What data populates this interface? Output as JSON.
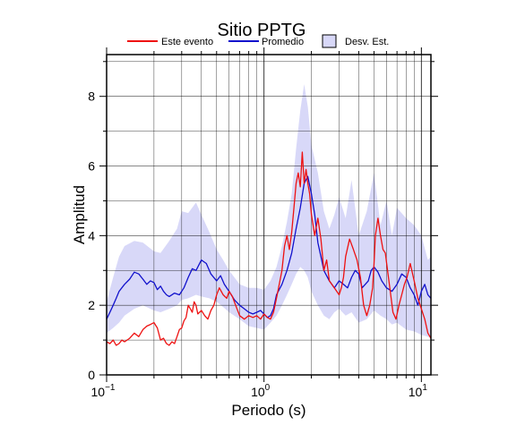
{
  "chart_data": {
    "type": "line",
    "title": "Sitio PPTG",
    "xlabel": "Periodo (s)",
    "ylabel": "Amplitud",
    "xscale": "log",
    "xlim": [
      0.1,
      11.5
    ],
    "ylim": [
      0,
      9.2
    ],
    "grid": true,
    "legend_position": "top",
    "x_ticks": [
      {
        "value": 0.1,
        "mant": "10",
        "exp": "−1"
      },
      {
        "value": 1,
        "mant": "10",
        "exp": "0"
      },
      {
        "value": 10,
        "mant": "10",
        "exp": "1"
      }
    ],
    "y_ticks": [
      0,
      2,
      4,
      6,
      8
    ],
    "legend": [
      {
        "label": "Este evento",
        "kind": "line",
        "color": "#ee1111"
      },
      {
        "label": "Promedio",
        "kind": "line",
        "color": "#1111cc"
      },
      {
        "label": "Desv. Est.",
        "kind": "box",
        "color": "#d8d8f8"
      }
    ],
    "band": {
      "name": "Desv. Est.",
      "color": "#d8d8f8",
      "x": [
        0.1,
        0.11,
        0.12,
        0.13,
        0.15,
        0.17,
        0.2,
        0.22,
        0.25,
        0.28,
        0.3,
        0.33,
        0.37,
        0.4,
        0.45,
        0.5,
        0.55,
        0.6,
        0.7,
        0.8,
        0.9,
        1.0,
        1.1,
        1.2,
        1.3,
        1.4,
        1.5,
        1.6,
        1.7,
        1.8,
        1.9,
        2.0,
        2.2,
        2.4,
        2.6,
        2.8,
        3.0,
        3.3,
        3.6,
        4.0,
        4.5,
        5.0,
        5.5,
        6.0,
        6.5,
        7.0,
        8.0,
        9.0,
        10.0,
        11.0,
        11.5
      ],
      "upper": [
        2.1,
        2.8,
        3.4,
        3.7,
        3.85,
        3.8,
        3.55,
        3.5,
        3.85,
        4.2,
        4.7,
        4.65,
        4.95,
        4.6,
        4.1,
        3.6,
        3.3,
        3.0,
        2.6,
        2.5,
        2.5,
        2.45,
        2.7,
        3.1,
        3.7,
        4.4,
        5.2,
        6.5,
        7.6,
        8.35,
        7.7,
        6.6,
        5.8,
        4.7,
        4.2,
        4.6,
        5.1,
        4.5,
        5.6,
        4.0,
        4.7,
        5.8,
        4.3,
        5.0,
        4.0,
        4.8,
        4.5,
        4.3,
        4.0,
        3.3,
        3.4
      ],
      "lower": [
        1.2,
        1.35,
        1.5,
        1.7,
        1.9,
        2.0,
        1.85,
        1.8,
        1.9,
        2.0,
        2.15,
        2.2,
        2.3,
        2.25,
        2.2,
        2.1,
        1.95,
        1.8,
        1.6,
        1.4,
        1.35,
        1.3,
        1.5,
        1.7,
        2.0,
        2.3,
        2.6,
        2.9,
        3.1,
        3.0,
        2.8,
        2.4,
        2.0,
        1.7,
        1.6,
        1.8,
        1.9,
        1.7,
        1.8,
        1.5,
        1.6,
        1.85,
        1.7,
        1.6,
        1.45,
        1.5,
        1.3,
        1.25,
        1.15,
        1.1,
        1.05
      ]
    },
    "series": [
      {
        "name": "Este evento",
        "color": "#ee1111",
        "x": [
          0.1,
          0.105,
          0.11,
          0.115,
          0.12,
          0.125,
          0.13,
          0.14,
          0.15,
          0.16,
          0.17,
          0.18,
          0.19,
          0.2,
          0.21,
          0.22,
          0.23,
          0.24,
          0.25,
          0.26,
          0.27,
          0.28,
          0.29,
          0.3,
          0.31,
          0.32,
          0.33,
          0.34,
          0.35,
          0.36,
          0.37,
          0.38,
          0.4,
          0.42,
          0.44,
          0.46,
          0.48,
          0.5,
          0.52,
          0.55,
          0.58,
          0.6,
          0.63,
          0.66,
          0.7,
          0.75,
          0.8,
          0.85,
          0.9,
          0.95,
          1.0,
          1.05,
          1.1,
          1.15,
          1.2,
          1.25,
          1.3,
          1.35,
          1.4,
          1.45,
          1.5,
          1.55,
          1.6,
          1.65,
          1.7,
          1.75,
          1.8,
          1.85,
          1.9,
          1.95,
          2.0,
          2.1,
          2.2,
          2.3,
          2.4,
          2.5,
          2.6,
          2.7,
          2.8,
          2.9,
          3.0,
          3.1,
          3.2,
          3.3,
          3.5,
          3.7,
          3.9,
          4.1,
          4.3,
          4.5,
          4.7,
          4.9,
          5.0,
          5.1,
          5.3,
          5.5,
          5.7,
          5.9,
          6.1,
          6.3,
          6.6,
          6.9,
          7.2,
          7.5,
          7.8,
          8.1,
          8.5,
          9.0,
          9.5,
          10.0,
          10.5,
          11.0,
          11.5
        ],
        "y": [
          0.95,
          0.9,
          1.0,
          0.85,
          0.9,
          1.0,
          0.95,
          1.05,
          1.2,
          1.1,
          1.3,
          1.4,
          1.45,
          1.5,
          1.35,
          1.0,
          1.05,
          0.9,
          0.85,
          0.95,
          0.9,
          1.1,
          1.3,
          1.35,
          1.55,
          1.65,
          2.0,
          1.9,
          1.8,
          2.1,
          2.0,
          1.75,
          1.85,
          1.7,
          1.6,
          1.85,
          2.0,
          2.3,
          2.5,
          2.3,
          2.2,
          2.4,
          2.25,
          2.0,
          1.7,
          1.6,
          1.7,
          1.65,
          1.7,
          1.6,
          1.75,
          1.65,
          1.6,
          1.8,
          2.2,
          2.6,
          3.0,
          3.7,
          4.0,
          3.6,
          4.1,
          4.8,
          5.5,
          5.8,
          5.4,
          6.4,
          5.5,
          5.9,
          5.5,
          5.2,
          4.6,
          4.0,
          4.5,
          3.9,
          3.0,
          3.3,
          2.7,
          2.6,
          2.5,
          2.4,
          2.3,
          2.5,
          2.8,
          3.4,
          3.9,
          3.6,
          3.3,
          2.8,
          2.0,
          1.7,
          2.0,
          2.5,
          3.2,
          4.0,
          4.5,
          4.0,
          3.6,
          3.5,
          3.0,
          2.5,
          1.8,
          1.6,
          2.0,
          2.3,
          2.6,
          2.8,
          3.2,
          2.7,
          2.2,
          1.9,
          1.6,
          1.2,
          1.05
        ]
      },
      {
        "name": "Promedio",
        "color": "#1111cc",
        "x": [
          0.1,
          0.105,
          0.11,
          0.115,
          0.12,
          0.13,
          0.14,
          0.15,
          0.16,
          0.17,
          0.18,
          0.19,
          0.2,
          0.21,
          0.22,
          0.23,
          0.24,
          0.25,
          0.27,
          0.29,
          0.31,
          0.33,
          0.35,
          0.37,
          0.4,
          0.43,
          0.46,
          0.5,
          0.53,
          0.56,
          0.6,
          0.65,
          0.7,
          0.75,
          0.8,
          0.85,
          0.9,
          0.95,
          1.0,
          1.05,
          1.1,
          1.15,
          1.2,
          1.3,
          1.4,
          1.5,
          1.6,
          1.7,
          1.8,
          1.9,
          2.0,
          2.1,
          2.2,
          2.3,
          2.4,
          2.6,
          2.8,
          3.0,
          3.2,
          3.4,
          3.6,
          3.8,
          4.0,
          4.2,
          4.4,
          4.6,
          4.8,
          5.0,
          5.3,
          5.6,
          6.0,
          6.5,
          7.0,
          7.5,
          8.0,
          8.5,
          9.0,
          9.5,
          10.0,
          10.5,
          11.0,
          11.5
        ],
        "y": [
          1.6,
          1.8,
          2.0,
          2.2,
          2.4,
          2.6,
          2.75,
          2.95,
          2.9,
          2.75,
          2.6,
          2.7,
          2.65,
          2.45,
          2.55,
          2.4,
          2.3,
          2.25,
          2.35,
          2.3,
          2.5,
          2.8,
          3.05,
          3.0,
          3.3,
          3.2,
          2.9,
          2.7,
          2.85,
          2.6,
          2.4,
          2.15,
          2.0,
          1.9,
          1.8,
          1.75,
          1.8,
          1.85,
          1.75,
          1.65,
          1.7,
          1.9,
          2.3,
          2.6,
          3.0,
          3.5,
          4.2,
          4.8,
          5.5,
          5.7,
          5.2,
          4.6,
          3.8,
          3.4,
          3.0,
          2.7,
          2.5,
          2.7,
          2.6,
          2.5,
          2.8,
          3.0,
          2.9,
          2.5,
          2.6,
          2.7,
          3.0,
          3.1,
          2.95,
          2.7,
          2.5,
          2.4,
          2.6,
          2.9,
          2.8,
          2.5,
          2.3,
          2.0,
          2.4,
          2.6,
          2.3,
          2.2
        ]
      }
    ]
  }
}
